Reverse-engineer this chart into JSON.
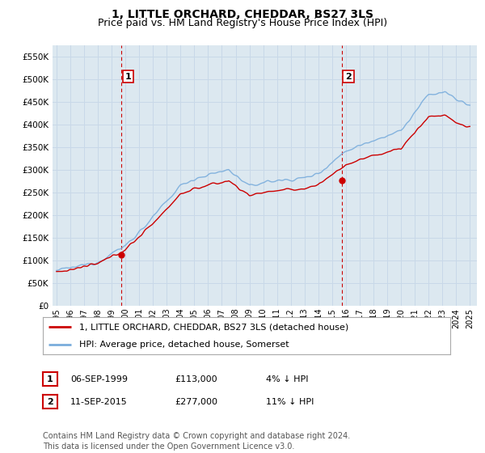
{
  "title": "1, LITTLE ORCHARD, CHEDDAR, BS27 3LS",
  "subtitle": "Price paid vs. HM Land Registry's House Price Index (HPI)",
  "ylim": [
    0,
    575000
  ],
  "yticks": [
    0,
    50000,
    100000,
    150000,
    200000,
    250000,
    300000,
    350000,
    400000,
    450000,
    500000,
    550000
  ],
  "ytick_labels": [
    "£0",
    "£50K",
    "£100K",
    "£150K",
    "£200K",
    "£250K",
    "£300K",
    "£350K",
    "£400K",
    "£450K",
    "£500K",
    "£550K"
  ],
  "xlim_start": 1994.7,
  "xlim_end": 2025.5,
  "sale1_x": 1999.68,
  "sale1_y": 113000,
  "sale1_label": "1",
  "sale2_x": 2015.69,
  "sale2_y": 277000,
  "sale2_label": "2",
  "vline1_x": 1999.68,
  "vline2_x": 2015.69,
  "red_line_color": "#cc0000",
  "blue_line_color": "#7aaddc",
  "vline_color": "#cc0000",
  "grid_color": "#c8d8e8",
  "plot_bg_color": "#dce8f0",
  "background_color": "#ffffff",
  "legend_line1": "1, LITTLE ORCHARD, CHEDDAR, BS27 3LS (detached house)",
  "legend_line2": "HPI: Average price, detached house, Somerset",
  "table_row1_num": "1",
  "table_row1_date": "06-SEP-1999",
  "table_row1_price": "£113,000",
  "table_row1_hpi": "4% ↓ HPI",
  "table_row2_num": "2",
  "table_row2_date": "11-SEP-2015",
  "table_row2_price": "£277,000",
  "table_row2_hpi": "11% ↓ HPI",
  "footnote": "Contains HM Land Registry data © Crown copyright and database right 2024.\nThis data is licensed under the Open Government Licence v3.0.",
  "title_fontsize": 10,
  "subtitle_fontsize": 9,
  "tick_fontsize": 7.5,
  "legend_fontsize": 8,
  "table_fontsize": 8,
  "footnote_fontsize": 7
}
